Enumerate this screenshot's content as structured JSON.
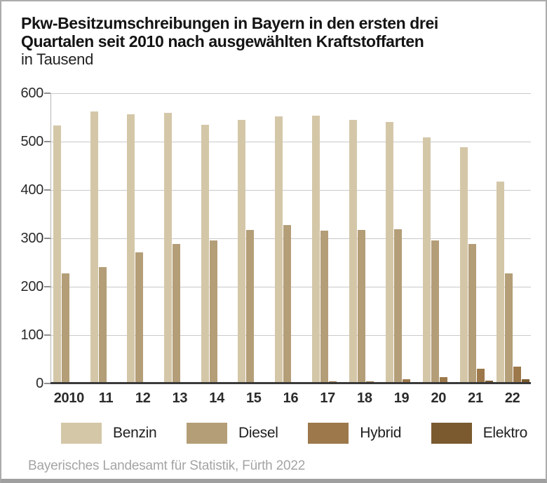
{
  "title": {
    "line1": "Pkw-Besitzumschreibungen in Bayern in den ersten drei",
    "line2": "Quartalen seit 2010 nach ausgewählten Kraftstoffarten",
    "subtitle": "in Tausend"
  },
  "source": "Bayerisches Landesamt für Statistik, Fürth 2022",
  "colors": {
    "benzin": "#d4c7a8",
    "diesel": "#b49e78",
    "hybrid": "#9c784a",
    "elektro": "#7a5a2e",
    "gridline": "#c9c9c9",
    "baseline": "#3a3a3a",
    "frame_border": "#ababab",
    "bottom_band": "#9f9f9f",
    "source_text": "#a4a4a4"
  },
  "chart_data": {
    "type": "bar",
    "title": "Pkw-Besitzumschreibungen in Bayern in den ersten drei Quartalen seit 2010 nach ausgewählten Kraftstoffarten",
    "ylabel": "in Tausend",
    "xlabel": "",
    "categories": [
      "2010",
      "11",
      "12",
      "13",
      "14",
      "15",
      "16",
      "17",
      "18",
      "19",
      "20",
      "21",
      "22"
    ],
    "series": [
      {
        "name": "Benzin",
        "color": "#d4c7a8",
        "values": [
          533,
          562,
          557,
          559,
          535,
          545,
          552,
          553,
          545,
          541,
          509,
          489,
          418
        ]
      },
      {
        "name": "Diesel",
        "color": "#b49e78",
        "values": [
          227,
          241,
          271,
          289,
          295,
          317,
          327,
          316,
          317,
          319,
          296,
          289,
          227
        ]
      },
      {
        "name": "Hybrid",
        "color": "#9c784a",
        "values": [
          0,
          0,
          0,
          0,
          0,
          0,
          2,
          4,
          5,
          8,
          13,
          30,
          35
        ]
      },
      {
        "name": "Elektro",
        "color": "#7a5a2e",
        "values": [
          0,
          0,
          0,
          0,
          0,
          0,
          0,
          0,
          0,
          1,
          2,
          6,
          9
        ]
      }
    ],
    "ylim": [
      0,
      600
    ],
    "yticks": [
      0,
      100,
      200,
      300,
      400,
      500,
      600
    ],
    "grid": true,
    "legend_position": "bottom"
  }
}
